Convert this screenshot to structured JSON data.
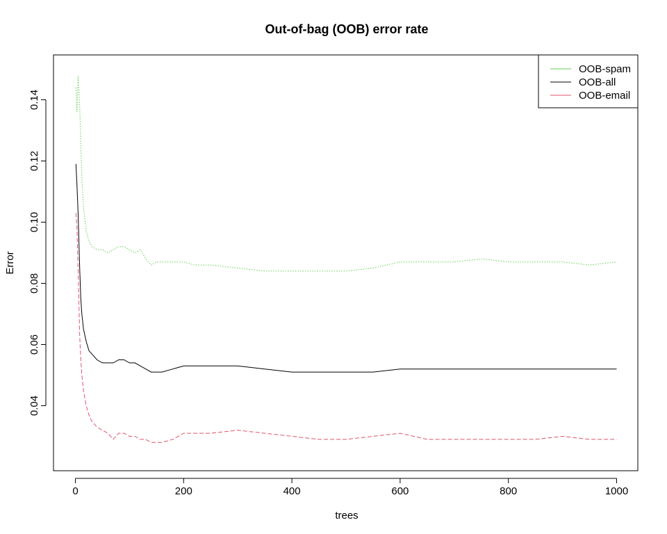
{
  "chart_data": {
    "type": "line",
    "title": "Out-of-bag (OOB) error rate",
    "xlabel": "trees",
    "ylabel": "Error",
    "xlim": [
      0,
      1000
    ],
    "ylim": [
      0.022,
      0.152
    ],
    "xticks": [
      "0",
      "200",
      "400",
      "600",
      "800",
      "1000"
    ],
    "yticks": [
      "0.04",
      "0.06",
      "0.08",
      "0.10",
      "0.12",
      "0.14"
    ],
    "grid": false,
    "legend_position": "top-right",
    "series": [
      {
        "name": "OOB-spam",
        "color": "#61D04F",
        "dash": "dotted",
        "x": [
          1,
          3,
          5,
          8,
          10,
          12,
          15,
          20,
          25,
          30,
          40,
          50,
          60,
          70,
          80,
          90,
          100,
          110,
          120,
          130,
          140,
          150,
          160,
          180,
          200,
          220,
          250,
          300,
          350,
          400,
          450,
          500,
          550,
          600,
          650,
          700,
          750,
          800,
          850,
          900,
          950,
          1000
        ],
        "y": [
          0.144,
          0.136,
          0.148,
          0.138,
          0.125,
          0.115,
          0.105,
          0.097,
          0.094,
          0.092,
          0.091,
          0.091,
          0.09,
          0.091,
          0.092,
          0.092,
          0.091,
          0.09,
          0.091,
          0.088,
          0.086,
          0.087,
          0.087,
          0.087,
          0.087,
          0.086,
          0.086,
          0.085,
          0.084,
          0.084,
          0.084,
          0.084,
          0.085,
          0.087,
          0.087,
          0.087,
          0.088,
          0.087,
          0.087,
          0.087,
          0.086,
          0.087
        ]
      },
      {
        "name": "OOB-all",
        "color": "#000000",
        "dash": "solid",
        "x": [
          1,
          3,
          5,
          8,
          10,
          12,
          15,
          20,
          25,
          30,
          40,
          50,
          60,
          70,
          80,
          90,
          100,
          110,
          120,
          130,
          140,
          150,
          160,
          180,
          200,
          220,
          250,
          300,
          350,
          400,
          450,
          500,
          550,
          600,
          650,
          700,
          750,
          800,
          850,
          900,
          950,
          1000
        ],
        "y": [
          0.119,
          0.112,
          0.103,
          0.085,
          0.075,
          0.07,
          0.065,
          0.061,
          0.058,
          0.057,
          0.055,
          0.054,
          0.054,
          0.054,
          0.055,
          0.055,
          0.054,
          0.054,
          0.053,
          0.052,
          0.051,
          0.051,
          0.051,
          0.052,
          0.053,
          0.053,
          0.053,
          0.053,
          0.052,
          0.051,
          0.051,
          0.051,
          0.051,
          0.052,
          0.052,
          0.052,
          0.052,
          0.052,
          0.052,
          0.052,
          0.052,
          0.052
        ]
      },
      {
        "name": "OOB-email",
        "color": "#DF536B",
        "dash": "dashed",
        "x": [
          1,
          3,
          5,
          8,
          10,
          12,
          15,
          20,
          25,
          30,
          40,
          50,
          60,
          70,
          80,
          90,
          100,
          110,
          120,
          130,
          140,
          150,
          160,
          180,
          200,
          220,
          250,
          300,
          350,
          400,
          450,
          500,
          550,
          600,
          650,
          700,
          750,
          800,
          850,
          900,
          950,
          1000
        ],
        "y": [
          0.103,
          0.098,
          0.085,
          0.063,
          0.055,
          0.05,
          0.045,
          0.04,
          0.037,
          0.035,
          0.033,
          0.032,
          0.031,
          0.029,
          0.031,
          0.031,
          0.03,
          0.03,
          0.029,
          0.029,
          0.028,
          0.028,
          0.028,
          0.029,
          0.031,
          0.031,
          0.031,
          0.032,
          0.031,
          0.03,
          0.029,
          0.029,
          0.03,
          0.031,
          0.029,
          0.029,
          0.029,
          0.029,
          0.029,
          0.03,
          0.029,
          0.029
        ]
      }
    ]
  }
}
